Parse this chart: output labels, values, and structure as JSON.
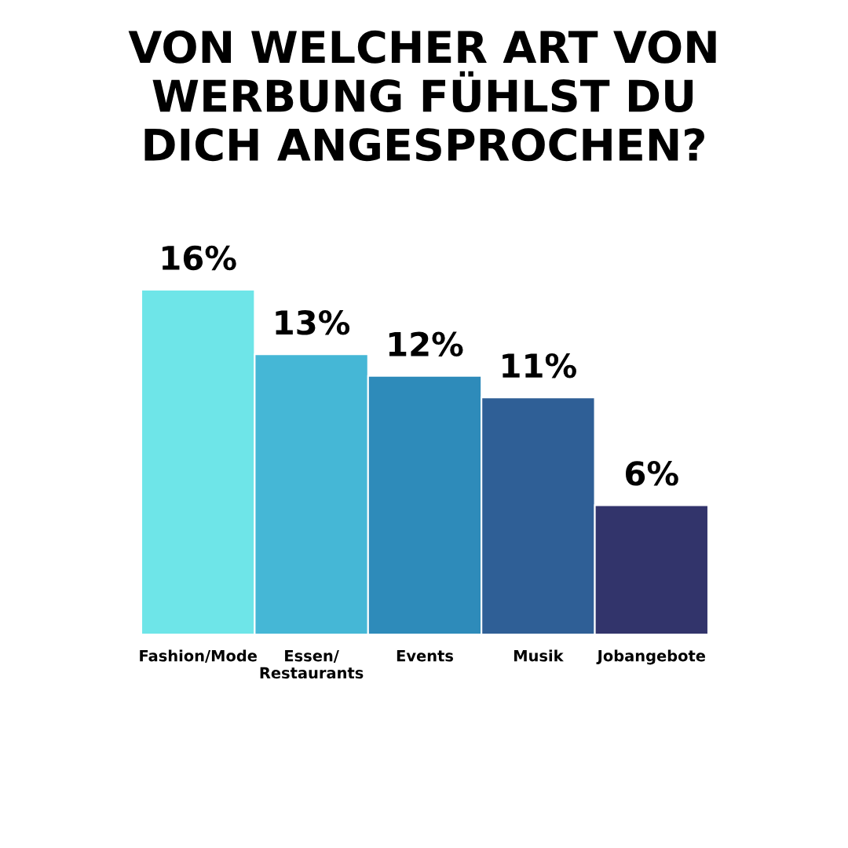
{
  "chart_data": {
    "type": "bar",
    "title": "VON WELCHER ART VON\nWERBUNG FÜHLST DU\nDICH ANGESPROCHEN?",
    "categories": [
      "Fashion/Mode",
      "Essen/\nRestaurants",
      "Events",
      "Musik",
      "Jobangebote"
    ],
    "values": [
      16,
      13,
      12,
      11,
      6
    ],
    "value_labels": [
      "16%",
      "13%",
      "12%",
      "11%",
      "6%"
    ],
    "colors": [
      "#6ee5e8",
      "#45b7d6",
      "#2e8bba",
      "#2f5f96",
      "#32346b"
    ],
    "tick_labels": "x"
  }
}
